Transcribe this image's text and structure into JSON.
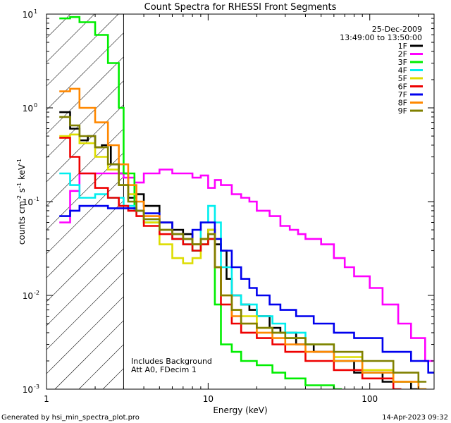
{
  "chart_data": {
    "type": "line",
    "title": "Count Spectra for RHESSI Front Segments",
    "xlabel": "Energy (keV)",
    "ylabel_main": "counts cm",
    "ylabel_exp1": "-2",
    "ylabel_mid": " s",
    "ylabel_exp2": "-1",
    "ylabel_unit": " keV",
    "ylabel_exp3": "-1",
    "xscale": "log",
    "yscale": "log",
    "xlim": [
      1,
      250
    ],
    "ylim": [
      0.001,
      10
    ],
    "xticks": [
      {
        "value": 1,
        "label": "1"
      },
      {
        "value": 10,
        "label": "10"
      },
      {
        "value": 100,
        "label": "100"
      }
    ],
    "yticks": [
      {
        "value": 10,
        "base": "10",
        "exp": "1"
      },
      {
        "value": 1,
        "base": "10",
        "exp": "0"
      },
      {
        "value": 0.1,
        "base": "10",
        "exp": "-1"
      },
      {
        "value": 0.01,
        "base": "10",
        "exp": "-2"
      },
      {
        "value": 0.001,
        "base": "10",
        "exp": "-3"
      }
    ],
    "attenuator_edge_keV": 3,
    "date": "25-Dec-2009",
    "time_range": "13:49:00 to 13:50:00",
    "annotation_lines": [
      "Includes Background",
      "Att A0, FDecim 1"
    ],
    "legend_placement": "top-right",
    "series": [
      {
        "name": "1F",
        "color": "#000000",
        "values": [
          [
            1.2,
            0.9
          ],
          [
            1.4,
            0.6
          ],
          [
            1.6,
            0.45
          ],
          [
            1.8,
            0.5
          ],
          [
            2.0,
            0.38
          ],
          [
            2.2,
            0.4
          ],
          [
            2.5,
            0.25
          ],
          [
            2.8,
            0.2
          ],
          [
            3.2,
            0.11
          ],
          [
            3.6,
            0.12
          ],
          [
            4.0,
            0.09
          ],
          [
            5,
            0.06
          ],
          [
            6,
            0.05
          ],
          [
            7,
            0.045
          ],
          [
            8,
            0.035
          ],
          [
            9,
            0.04
          ],
          [
            10,
            0.05
          ],
          [
            11,
            0.035
          ],
          [
            12,
            0.03
          ],
          [
            13,
            0.015
          ],
          [
            14,
            0.01
          ],
          [
            16,
            0.008
          ],
          [
            18,
            0.007
          ],
          [
            20,
            0.006
          ],
          [
            24,
            0.0045
          ],
          [
            28,
            0.004
          ],
          [
            35,
            0.003
          ],
          [
            45,
            0.0025
          ],
          [
            60,
            0.002
          ],
          [
            80,
            0.0015
          ],
          [
            120,
            0.0012
          ],
          [
            180,
            0.001
          ]
        ]
      },
      {
        "name": "2F",
        "color": "#ff00ff",
        "values": [
          [
            1.2,
            0.06
          ],
          [
            1.4,
            0.13
          ],
          [
            1.6,
            0.2
          ],
          [
            2.0,
            0.2
          ],
          [
            2.4,
            0.2
          ],
          [
            3.0,
            0.18
          ],
          [
            3.5,
            0.16
          ],
          [
            4.0,
            0.2
          ],
          [
            5,
            0.22
          ],
          [
            6,
            0.2
          ],
          [
            7,
            0.2
          ],
          [
            8,
            0.18
          ],
          [
            9,
            0.19
          ],
          [
            10,
            0.14
          ],
          [
            11,
            0.17
          ],
          [
            12,
            0.15
          ],
          [
            14,
            0.12
          ],
          [
            16,
            0.11
          ],
          [
            18,
            0.1
          ],
          [
            20,
            0.08
          ],
          [
            24,
            0.07
          ],
          [
            28,
            0.055
          ],
          [
            32,
            0.05
          ],
          [
            36,
            0.045
          ],
          [
            40,
            0.04
          ],
          [
            50,
            0.035
          ],
          [
            60,
            0.025
          ],
          [
            70,
            0.02
          ],
          [
            80,
            0.016
          ],
          [
            100,
            0.012
          ],
          [
            120,
            0.008
          ],
          [
            150,
            0.005
          ],
          [
            180,
            0.0035
          ],
          [
            220,
            0.002
          ]
        ]
      },
      {
        "name": "3F",
        "color": "#00ee00",
        "values": [
          [
            1.2,
            9
          ],
          [
            1.4,
            9.3
          ],
          [
            1.6,
            8.2
          ],
          [
            2.0,
            6
          ],
          [
            2.4,
            3
          ],
          [
            2.8,
            1
          ],
          [
            3.0,
            0.2
          ],
          [
            3.5,
            0.08
          ],
          [
            4.0,
            0.06
          ],
          [
            5,
            0.05
          ],
          [
            6,
            0.045
          ],
          [
            7,
            0.04
          ],
          [
            8,
            0.03
          ],
          [
            9,
            0.035
          ],
          [
            10,
            0.04
          ],
          [
            11,
            0.008
          ],
          [
            12,
            0.003
          ],
          [
            14,
            0.0025
          ],
          [
            16,
            0.002
          ],
          [
            20,
            0.0018
          ],
          [
            25,
            0.0015
          ],
          [
            30,
            0.0013
          ],
          [
            40,
            0.0011
          ],
          [
            60,
            0.001
          ]
        ]
      },
      {
        "name": "4F",
        "color": "#00eeee",
        "values": [
          [
            1.2,
            0.2
          ],
          [
            1.4,
            0.15
          ],
          [
            1.6,
            0.11
          ],
          [
            2.0,
            0.12
          ],
          [
            2.4,
            0.11
          ],
          [
            3.0,
            0.09
          ],
          [
            3.5,
            0.08
          ],
          [
            4.0,
            0.065
          ],
          [
            5,
            0.05
          ],
          [
            6,
            0.04
          ],
          [
            7,
            0.035
          ],
          [
            8,
            0.03
          ],
          [
            9,
            0.06
          ],
          [
            10,
            0.09
          ],
          [
            11,
            0.06
          ],
          [
            12,
            0.02
          ],
          [
            14,
            0.01
          ],
          [
            16,
            0.008
          ],
          [
            20,
            0.006
          ],
          [
            25,
            0.005
          ],
          [
            30,
            0.004
          ],
          [
            40,
            0.003
          ],
          [
            60,
            0.002
          ],
          [
            90,
            0.0015
          ],
          [
            140,
            0.0012
          ],
          [
            200,
            0.001
          ]
        ]
      },
      {
        "name": "5F",
        "color": "#dddd00",
        "values": [
          [
            1.2,
            0.5
          ],
          [
            1.4,
            0.52
          ],
          [
            1.6,
            0.42
          ],
          [
            2.0,
            0.3
          ],
          [
            2.4,
            0.22
          ],
          [
            2.8,
            0.15
          ],
          [
            3.2,
            0.12
          ],
          [
            3.6,
            0.08
          ],
          [
            4.0,
            0.06
          ],
          [
            5,
            0.035
          ],
          [
            6,
            0.025
          ],
          [
            7,
            0.022
          ],
          [
            8,
            0.025
          ],
          [
            9,
            0.04
          ],
          [
            10,
            0.05
          ],
          [
            11,
            0.02
          ],
          [
            12,
            0.01
          ],
          [
            14,
            0.007
          ],
          [
            16,
            0.006
          ],
          [
            20,
            0.0045
          ],
          [
            25,
            0.004
          ],
          [
            30,
            0.0035
          ],
          [
            40,
            0.003
          ],
          [
            60,
            0.0022
          ],
          [
            90,
            0.0016
          ],
          [
            140,
            0.0012
          ],
          [
            200,
            0.001
          ]
        ]
      },
      {
        "name": "6F",
        "color": "#ee0000",
        "values": [
          [
            1.2,
            0.48
          ],
          [
            1.4,
            0.3
          ],
          [
            1.6,
            0.2
          ],
          [
            2.0,
            0.14
          ],
          [
            2.4,
            0.11
          ],
          [
            2.8,
            0.09
          ],
          [
            3.2,
            0.08
          ],
          [
            3.6,
            0.07
          ],
          [
            4.0,
            0.055
          ],
          [
            5,
            0.045
          ],
          [
            6,
            0.04
          ],
          [
            7,
            0.035
          ],
          [
            8,
            0.03
          ],
          [
            9,
            0.035
          ],
          [
            10,
            0.04
          ],
          [
            11,
            0.02
          ],
          [
            12,
            0.008
          ],
          [
            14,
            0.005
          ],
          [
            16,
            0.004
          ],
          [
            20,
            0.0035
          ],
          [
            25,
            0.003
          ],
          [
            30,
            0.0025
          ],
          [
            40,
            0.002
          ],
          [
            60,
            0.0016
          ],
          [
            90,
            0.0013
          ],
          [
            140,
            0.001
          ]
        ]
      },
      {
        "name": "7F",
        "color": "#0000ee",
        "values": [
          [
            1.2,
            0.07
          ],
          [
            1.4,
            0.08
          ],
          [
            1.6,
            0.09
          ],
          [
            2.0,
            0.09
          ],
          [
            2.4,
            0.085
          ],
          [
            2.8,
            0.085
          ],
          [
            3.2,
            0.085
          ],
          [
            3.6,
            0.08
          ],
          [
            4.0,
            0.075
          ],
          [
            5,
            0.06
          ],
          [
            6,
            0.045
          ],
          [
            7,
            0.04
          ],
          [
            8,
            0.05
          ],
          [
            9,
            0.06
          ],
          [
            10,
            0.06
          ],
          [
            11,
            0.04
          ],
          [
            12,
            0.03
          ],
          [
            14,
            0.02
          ],
          [
            16,
            0.015
          ],
          [
            18,
            0.012
          ],
          [
            20,
            0.01
          ],
          [
            24,
            0.008
          ],
          [
            28,
            0.007
          ],
          [
            35,
            0.006
          ],
          [
            45,
            0.005
          ],
          [
            60,
            0.004
          ],
          [
            80,
            0.0035
          ],
          [
            120,
            0.0025
          ],
          [
            180,
            0.002
          ],
          [
            230,
            0.0015
          ]
        ]
      },
      {
        "name": "8F",
        "color": "#ff8800",
        "values": [
          [
            1.2,
            1.5
          ],
          [
            1.4,
            1.6
          ],
          [
            1.6,
            1.0
          ],
          [
            2.0,
            0.7
          ],
          [
            2.4,
            0.4
          ],
          [
            2.8,
            0.25
          ],
          [
            3.2,
            0.15
          ],
          [
            3.6,
            0.1
          ],
          [
            4.0,
            0.07
          ],
          [
            5,
            0.05
          ],
          [
            6,
            0.045
          ],
          [
            7,
            0.04
          ],
          [
            8,
            0.035
          ],
          [
            9,
            0.04
          ],
          [
            10,
            0.045
          ],
          [
            11,
            0.02
          ],
          [
            12,
            0.01
          ],
          [
            14,
            0.006
          ],
          [
            16,
            0.005
          ],
          [
            20,
            0.004
          ],
          [
            25,
            0.0035
          ],
          [
            30,
            0.003
          ],
          [
            40,
            0.0025
          ],
          [
            60,
            0.002
          ],
          [
            90,
            0.0015
          ],
          [
            140,
            0.0012
          ],
          [
            200,
            0.001
          ]
        ]
      },
      {
        "name": "9F",
        "color": "#808000",
        "values": [
          [
            1.2,
            0.8
          ],
          [
            1.4,
            0.65
          ],
          [
            1.6,
            0.5
          ],
          [
            2.0,
            0.38
          ],
          [
            2.4,
            0.25
          ],
          [
            2.8,
            0.15
          ],
          [
            3.2,
            0.1
          ],
          [
            3.6,
            0.08
          ],
          [
            4.0,
            0.065
          ],
          [
            5,
            0.05
          ],
          [
            6,
            0.045
          ],
          [
            7,
            0.04
          ],
          [
            8,
            0.035
          ],
          [
            9,
            0.04
          ],
          [
            10,
            0.045
          ],
          [
            11,
            0.02
          ],
          [
            12,
            0.01
          ],
          [
            14,
            0.007
          ],
          [
            16,
            0.005
          ],
          [
            20,
            0.0045
          ],
          [
            25,
            0.004
          ],
          [
            30,
            0.0035
          ],
          [
            40,
            0.003
          ],
          [
            60,
            0.0025
          ],
          [
            90,
            0.002
          ],
          [
            140,
            0.0015
          ],
          [
            200,
            0.0012
          ]
        ]
      }
    ]
  },
  "footer": {
    "generated_by": "Generated by hsi_min_spectra_plot.pro",
    "timestamp": "14-Apr-2023 09:32"
  }
}
